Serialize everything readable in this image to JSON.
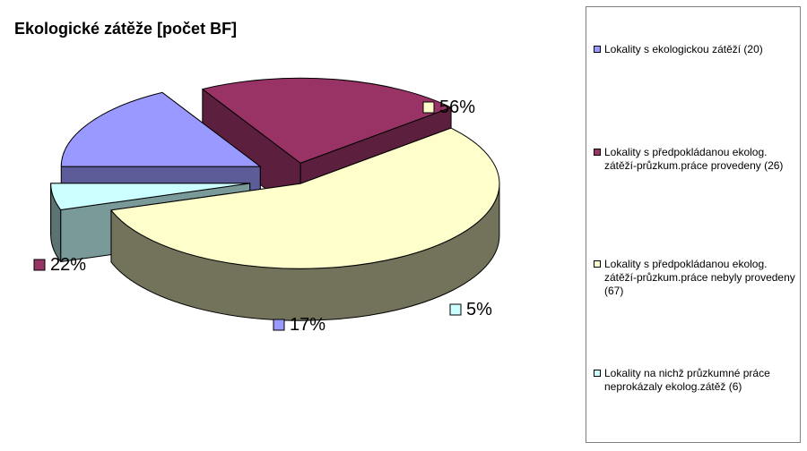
{
  "chart_data": {
    "type": "pie",
    "title": "Ekologické zátěže [počet BF]",
    "categories": [
      "Lokality s ekologickou zátěží (20)",
      "Lokality s předpokládanou ekolog. zátěží-průzkum.práce provedeny (26)",
      "Lokality s předpokládanou ekolog. zátěží-průzkum.práce nebyly provedeny (67)",
      "Lokality na nichž průzkumné práce neprokázaly ekolog.zátěž (6)"
    ],
    "values": [
      20,
      26,
      67,
      6
    ],
    "data_labels": [
      "17%",
      "22%",
      "56%",
      "5%"
    ],
    "colors": [
      "#9999ff",
      "#993366",
      "#ffffcc",
      "#ccffff"
    ],
    "legend_position": "right"
  }
}
